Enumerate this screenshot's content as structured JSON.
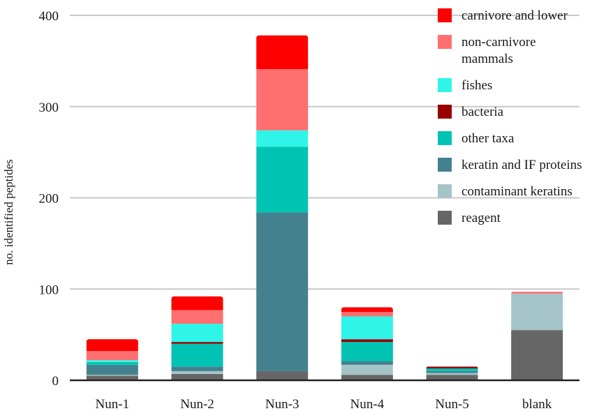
{
  "chart_data": {
    "type": "bar",
    "stacked": true,
    "categories": [
      "Nun-1",
      "Nun-2",
      "Nun-3",
      "Nun-4",
      "Nun-5",
      "blank"
    ],
    "xlabel": "",
    "ylabel": "no. identified peptides",
    "ylim": [
      0,
      400
    ],
    "yticks": [
      0,
      100,
      200,
      300,
      400
    ],
    "grid": true,
    "legend_position": "top-right",
    "series": [
      {
        "name": "reagent",
        "color": "#666666",
        "values": [
          5,
          7,
          10,
          6,
          6,
          55
        ]
      },
      {
        "name": "contaminant keratins",
        "color": "#a5c4c8",
        "values": [
          1,
          3,
          0,
          11,
          2,
          40
        ]
      },
      {
        "name": "keratin and IF proteins",
        "color": "#44818f",
        "values": [
          11,
          5,
          174,
          4,
          2,
          0
        ]
      },
      {
        "name": "other taxa",
        "color": "#00c3b3",
        "values": [
          3,
          25,
          72,
          21,
          3,
          0
        ]
      },
      {
        "name": "bacteria",
        "color": "#990000",
        "values": [
          0,
          2,
          0,
          3,
          2,
          0
        ]
      },
      {
        "name": "fishes",
        "color": "#2ef5e8",
        "values": [
          2,
          20,
          18,
          25,
          0,
          0
        ]
      },
      {
        "name": "non-carnivore mammals",
        "color": "#ff6f6f",
        "values": [
          10,
          15,
          67,
          5,
          0,
          2
        ]
      },
      {
        "name": "carnivore and lower",
        "color": "#ff0000",
        "values": [
          13,
          15,
          37,
          5,
          0,
          0
        ]
      }
    ],
    "legend_order": [
      {
        "label_lines": [
          "carnivore and lower"
        ],
        "color": "#ff0000"
      },
      {
        "label_lines": [
          "non-carnivore",
          "mammals"
        ],
        "color": "#ff6f6f"
      },
      {
        "label_lines": [
          "fishes"
        ],
        "color": "#2ef5e8"
      },
      {
        "label_lines": [
          "bacteria"
        ],
        "color": "#990000"
      },
      {
        "label_lines": [
          "other taxa"
        ],
        "color": "#00c3b3"
      },
      {
        "label_lines": [
          "keratin and IF proteins"
        ],
        "color": "#44818f"
      },
      {
        "label_lines": [
          "contaminant keratins"
        ],
        "color": "#a5c4c8"
      },
      {
        "label_lines": [
          "reagent"
        ],
        "color": "#666666"
      }
    ]
  }
}
